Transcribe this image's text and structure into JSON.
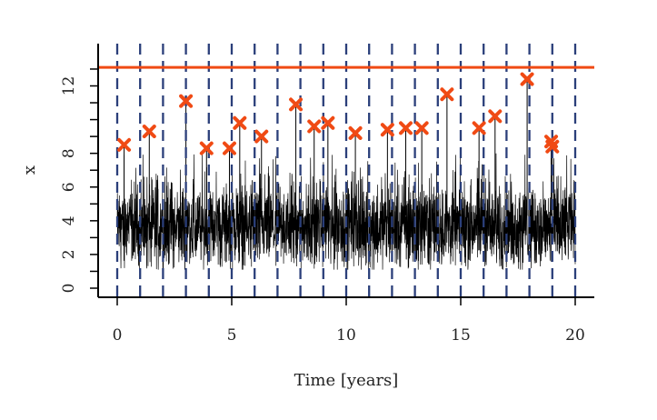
{
  "chart_data": {
    "type": "line",
    "title": "",
    "xlabel": "Time [years]",
    "ylabel": "x",
    "xlim": [
      0,
      20
    ],
    "ylim": [
      0,
      13.4
    ],
    "x_ticks": [
      0,
      5,
      10,
      15,
      20
    ],
    "x_tick_labels": [
      "0",
      "5",
      "10",
      "15",
      "20"
    ],
    "y_ticks": [
      0,
      1,
      2,
      3,
      4,
      5,
      6,
      7,
      8,
      9,
      10,
      11,
      12,
      13
    ],
    "y_tick_labels": [
      "0",
      "",
      "2",
      "",
      "4",
      "",
      "6",
      "",
      "8",
      "",
      "",
      "",
      "12",
      ""
    ],
    "grid": false,
    "threshold": {
      "value": 13.1,
      "color": "#f04a14"
    },
    "year_boundaries": [
      0,
      1,
      2,
      3,
      4,
      5,
      6,
      7,
      8,
      9,
      10,
      11,
      12,
      13,
      14,
      15,
      16,
      17,
      18,
      19,
      20
    ],
    "boundary_color": "#2b3f7a",
    "series": [
      {
        "kind": "time-series",
        "color": "#000000",
        "x_range": [
          0,
          20
        ],
        "typical_range": [
          1.5,
          7.5
        ],
        "median": 3.3
      },
      {
        "kind": "annual-maxima",
        "color": "#f04a14",
        "marker": "x",
        "points": [
          {
            "x": 0.3,
            "y": 8.5
          },
          {
            "x": 1.4,
            "y": 9.3
          },
          {
            "x": 3.0,
            "y": 11.1
          },
          {
            "x": 3.9,
            "y": 8.3
          },
          {
            "x": 4.9,
            "y": 8.3
          },
          {
            "x": 5.35,
            "y": 9.8
          },
          {
            "x": 6.3,
            "y": 9.0
          },
          {
            "x": 7.8,
            "y": 10.9
          },
          {
            "x": 8.6,
            "y": 9.6
          },
          {
            "x": 9.2,
            "y": 9.8
          },
          {
            "x": 10.4,
            "y": 9.2
          },
          {
            "x": 11.8,
            "y": 9.4
          },
          {
            "x": 12.6,
            "y": 9.5
          },
          {
            "x": 13.3,
            "y": 9.5
          },
          {
            "x": 14.4,
            "y": 11.5
          },
          {
            "x": 15.8,
            "y": 9.5
          },
          {
            "x": 16.5,
            "y": 10.2
          },
          {
            "x": 17.9,
            "y": 12.4
          },
          {
            "x": 18.95,
            "y": 8.7
          },
          {
            "x": 19.0,
            "y": 8.4
          }
        ]
      }
    ]
  }
}
